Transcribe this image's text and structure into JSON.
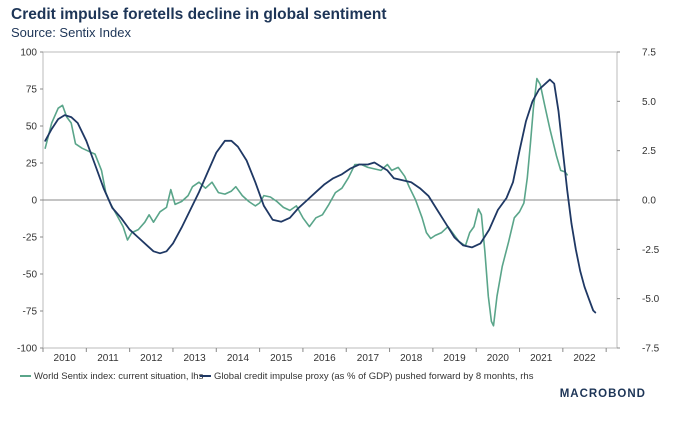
{
  "chart_data": {
    "type": "line",
    "title": "Credit impulse foretells decline in global sentiment",
    "subtitle": "Source: Sentix Index",
    "x_ticks": [
      "2010",
      "2011",
      "2012",
      "2013",
      "2014",
      "2015",
      "2016",
      "2017",
      "2018",
      "2019",
      "2020",
      "2021",
      "2022"
    ],
    "xlim": [
      2009.5,
      2022.75
    ],
    "y_left": {
      "ticks": [
        "100",
        "75",
        "50",
        "25",
        "0",
        "-25",
        "-50",
        "-75",
        "-100"
      ],
      "ylim": [
        -100,
        100
      ]
    },
    "y_right": {
      "ticks": [
        "7.5",
        "5.0",
        "2.5",
        "0.0",
        "-2.5",
        "-5.0",
        "-7.5"
      ],
      "ylim": [
        -7.5,
        7.5
      ]
    },
    "series": [
      {
        "name": "World Sentix index: current situation, lhs",
        "axis": "left",
        "color": "#5aa58a",
        "points": [
          [
            2009.55,
            35
          ],
          [
            2009.7,
            52
          ],
          [
            2009.85,
            62
          ],
          [
            2009.95,
            64
          ],
          [
            2010.05,
            56
          ],
          [
            2010.15,
            52
          ],
          [
            2010.25,
            38
          ],
          [
            2010.4,
            35
          ],
          [
            2010.55,
            33
          ],
          [
            2010.7,
            31
          ],
          [
            2010.85,
            20
          ],
          [
            2010.95,
            5
          ],
          [
            2011.05,
            -2
          ],
          [
            2011.2,
            -10
          ],
          [
            2011.35,
            -18
          ],
          [
            2011.45,
            -27
          ],
          [
            2011.55,
            -22
          ],
          [
            2011.7,
            -20
          ],
          [
            2011.85,
            -15
          ],
          [
            2011.95,
            -10
          ],
          [
            2012.05,
            -15
          ],
          [
            2012.2,
            -8
          ],
          [
            2012.35,
            -5
          ],
          [
            2012.45,
            7
          ],
          [
            2012.55,
            -3
          ],
          [
            2012.7,
            -1
          ],
          [
            2012.85,
            3
          ],
          [
            2012.95,
            9
          ],
          [
            2013.1,
            12
          ],
          [
            2013.25,
            8
          ],
          [
            2013.4,
            12
          ],
          [
            2013.55,
            5
          ],
          [
            2013.7,
            4
          ],
          [
            2013.85,
            6
          ],
          [
            2013.95,
            9
          ],
          [
            2014.1,
            3
          ],
          [
            2014.25,
            -1
          ],
          [
            2014.4,
            -4
          ],
          [
            2014.5,
            -2
          ],
          [
            2014.6,
            3
          ],
          [
            2014.75,
            2
          ],
          [
            2014.9,
            -1
          ],
          [
            2015.05,
            -5
          ],
          [
            2015.2,
            -7
          ],
          [
            2015.35,
            -4
          ],
          [
            2015.5,
            -12
          ],
          [
            2015.65,
            -18
          ],
          [
            2015.8,
            -12
          ],
          [
            2015.95,
            -10
          ],
          [
            2016.1,
            -3
          ],
          [
            2016.25,
            5
          ],
          [
            2016.4,
            8
          ],
          [
            2016.55,
            15
          ],
          [
            2016.7,
            24
          ],
          [
            2016.85,
            24
          ],
          [
            2017.0,
            22
          ],
          [
            2017.15,
            21
          ],
          [
            2017.3,
            20
          ],
          [
            2017.45,
            24
          ],
          [
            2017.55,
            20
          ],
          [
            2017.7,
            22
          ],
          [
            2017.85,
            16
          ],
          [
            2017.95,
            9
          ],
          [
            2018.1,
            0
          ],
          [
            2018.25,
            -12
          ],
          [
            2018.35,
            -22
          ],
          [
            2018.45,
            -26
          ],
          [
            2018.55,
            -24
          ],
          [
            2018.7,
            -22
          ],
          [
            2018.85,
            -18
          ],
          [
            2018.95,
            -22
          ],
          [
            2019.1,
            -28
          ],
          [
            2019.25,
            -31
          ],
          [
            2019.35,
            -22
          ],
          [
            2019.45,
            -18
          ],
          [
            2019.55,
            -6
          ],
          [
            2019.62,
            -10
          ],
          [
            2019.7,
            -35
          ],
          [
            2019.78,
            -65
          ],
          [
            2019.85,
            -82
          ],
          [
            2019.9,
            -85
          ],
          [
            2019.98,
            -65
          ],
          [
            2020.1,
            -45
          ],
          [
            2020.25,
            -28
          ],
          [
            2020.38,
            -12
          ],
          [
            2020.5,
            -8
          ],
          [
            2020.6,
            -2
          ],
          [
            2020.68,
            15
          ],
          [
            2020.75,
            38
          ],
          [
            2020.82,
            62
          ],
          [
            2020.9,
            82
          ],
          [
            2020.98,
            78
          ],
          [
            2021.08,
            64
          ],
          [
            2021.2,
            48
          ],
          [
            2021.35,
            30
          ],
          [
            2021.45,
            20
          ],
          [
            2021.55,
            19
          ],
          [
            2021.6,
            17
          ]
        ]
      },
      {
        "name": "Global credit impulse proxy (as % of GDP) pushed forward by 8 monhts, rhs",
        "axis": "right",
        "color": "#1f3864",
        "points": [
          [
            2009.55,
            3.0
          ],
          [
            2009.7,
            3.6
          ],
          [
            2009.85,
            4.1
          ],
          [
            2010.0,
            4.3
          ],
          [
            2010.15,
            4.2
          ],
          [
            2010.3,
            3.9
          ],
          [
            2010.5,
            3.0
          ],
          [
            2010.7,
            1.8
          ],
          [
            2010.9,
            0.6
          ],
          [
            2011.1,
            -0.4
          ],
          [
            2011.3,
            -0.9
          ],
          [
            2011.5,
            -1.5
          ],
          [
            2011.7,
            -1.9
          ],
          [
            2011.9,
            -2.3
          ],
          [
            2012.05,
            -2.6
          ],
          [
            2012.2,
            -2.7
          ],
          [
            2012.35,
            -2.6
          ],
          [
            2012.5,
            -2.2
          ],
          [
            2012.7,
            -1.4
          ],
          [
            2012.9,
            -0.5
          ],
          [
            2013.1,
            0.4
          ],
          [
            2013.3,
            1.4
          ],
          [
            2013.5,
            2.4
          ],
          [
            2013.7,
            3.0
          ],
          [
            2013.85,
            3.0
          ],
          [
            2014.0,
            2.7
          ],
          [
            2014.2,
            2.0
          ],
          [
            2014.4,
            0.9
          ],
          [
            2014.6,
            -0.3
          ],
          [
            2014.8,
            -1.0
          ],
          [
            2015.0,
            -1.1
          ],
          [
            2015.2,
            -0.9
          ],
          [
            2015.4,
            -0.4
          ],
          [
            2015.6,
            0.0
          ],
          [
            2015.8,
            0.4
          ],
          [
            2016.0,
            0.8
          ],
          [
            2016.2,
            1.1
          ],
          [
            2016.4,
            1.3
          ],
          [
            2016.6,
            1.6
          ],
          [
            2016.8,
            1.8
          ],
          [
            2017.0,
            1.8
          ],
          [
            2017.15,
            1.9
          ],
          [
            2017.3,
            1.7
          ],
          [
            2017.45,
            1.5
          ],
          [
            2017.6,
            1.1
          ],
          [
            2017.8,
            1.0
          ],
          [
            2018.0,
            0.9
          ],
          [
            2018.2,
            0.6
          ],
          [
            2018.4,
            0.2
          ],
          [
            2018.6,
            -0.5
          ],
          [
            2018.8,
            -1.2
          ],
          [
            2019.0,
            -1.9
          ],
          [
            2019.2,
            -2.3
          ],
          [
            2019.4,
            -2.4
          ],
          [
            2019.6,
            -2.2
          ],
          [
            2019.8,
            -1.5
          ],
          [
            2020.0,
            -0.5
          ],
          [
            2020.2,
            0.1
          ],
          [
            2020.35,
            0.9
          ],
          [
            2020.5,
            2.5
          ],
          [
            2020.65,
            4.0
          ],
          [
            2020.8,
            5.0
          ],
          [
            2020.95,
            5.6
          ],
          [
            2021.1,
            5.9
          ],
          [
            2021.2,
            6.1
          ],
          [
            2021.3,
            5.9
          ],
          [
            2021.4,
            4.5
          ],
          [
            2021.5,
            2.5
          ],
          [
            2021.6,
            0.5
          ],
          [
            2021.7,
            -1.2
          ],
          [
            2021.8,
            -2.5
          ],
          [
            2021.9,
            -3.6
          ],
          [
            2022.0,
            -4.4
          ],
          [
            2022.1,
            -5.0
          ],
          [
            2022.2,
            -5.6
          ],
          [
            2022.25,
            -5.7
          ]
        ]
      }
    ],
    "legend": [
      "World Sentix index: current situation, lhs",
      "Global credit impulse proxy (as % of GDP) pushed forward by 8 monhts, rhs"
    ],
    "legend_position": "bottom"
  },
  "brand": "MACROBOND"
}
